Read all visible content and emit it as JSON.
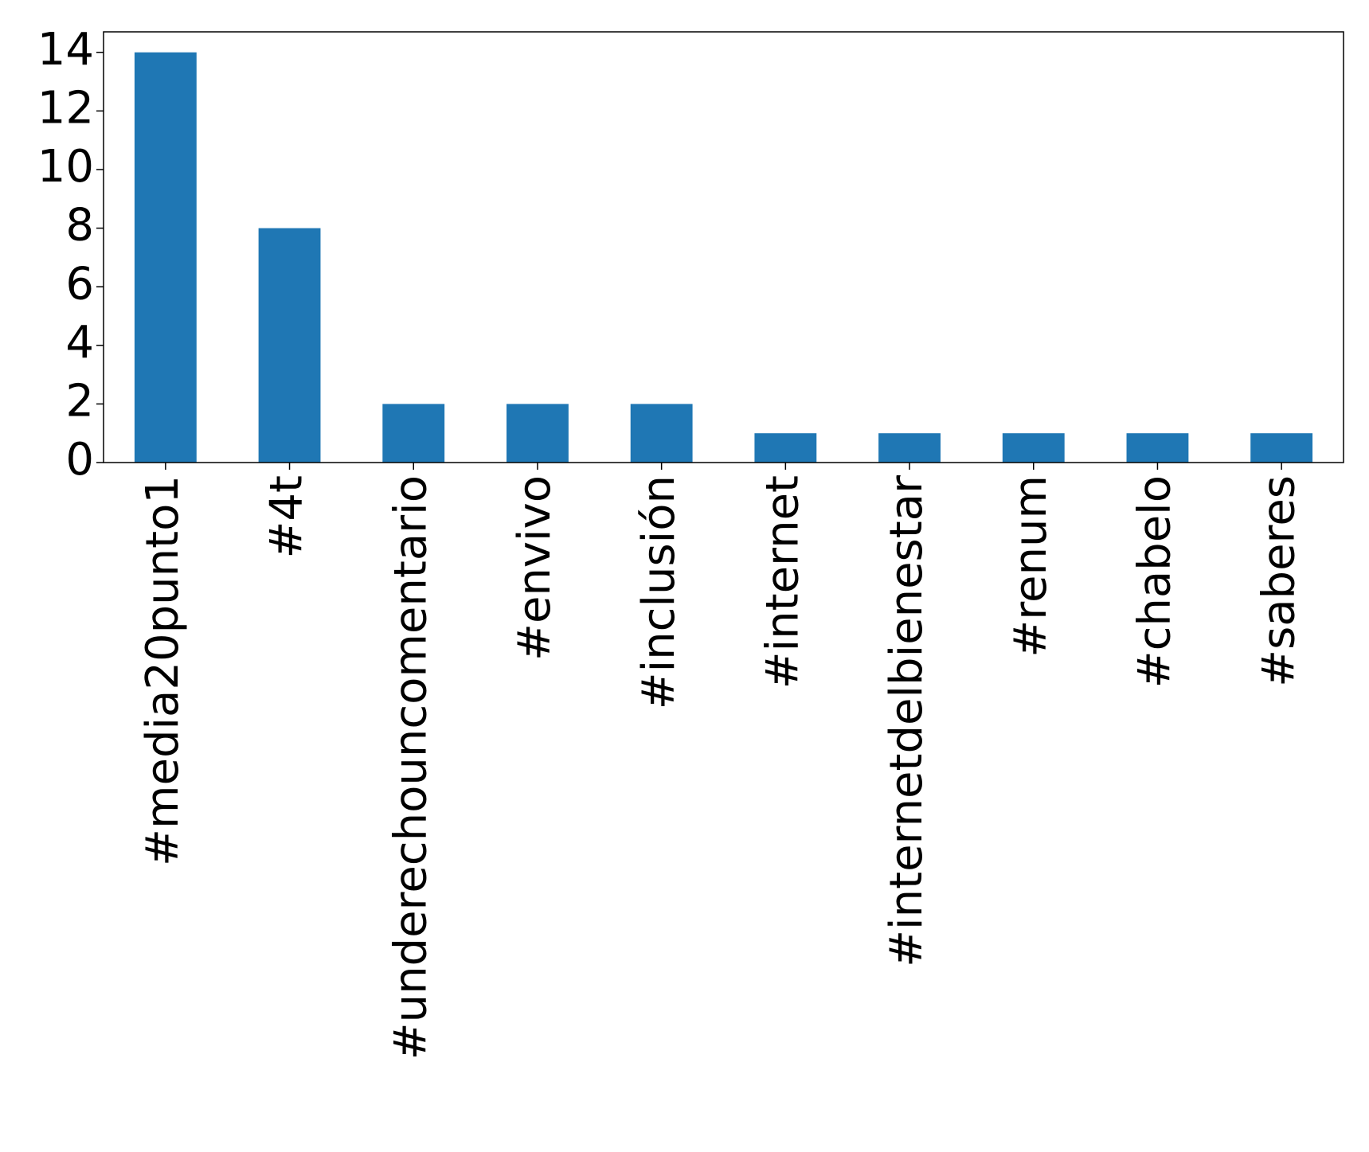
{
  "chart_data": {
    "type": "bar",
    "categories": [
      "#media20punto1",
      "#4t",
      "#underechouncomentario",
      "#envivo",
      "#inclusión",
      "#internet",
      "#internetdelbienestar",
      "#renum",
      "#chabelo",
      "#saberes"
    ],
    "values": [
      14,
      8,
      2,
      2,
      2,
      1,
      1,
      1,
      1,
      1
    ],
    "color": "#1f77b4",
    "ylim": [
      0,
      14.7
    ],
    "yticks": [
      0,
      2,
      4,
      6,
      8,
      10,
      12,
      14
    ]
  }
}
